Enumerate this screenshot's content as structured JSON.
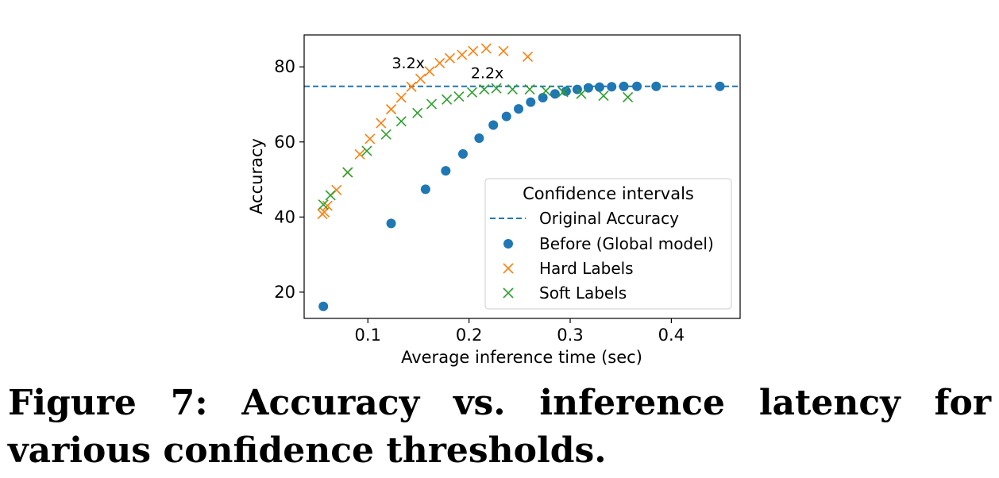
{
  "caption": "Figure 7: Accuracy vs. inference latency for various confidence thresholds.",
  "colors": {
    "blue": "#1f77b4",
    "orange": "#ff7f0e",
    "green": "#2ca02c"
  },
  "chart_data": {
    "type": "scatter",
    "xlabel": "Average inference time (sec)",
    "ylabel": "Accuracy",
    "xlim": [
      0.037,
      0.468
    ],
    "ylim": [
      13.0,
      88.5
    ],
    "xticks": [
      0.1,
      0.2,
      0.3,
      0.4
    ],
    "xtick_labels": [
      "0.1",
      "0.2",
      "0.3",
      "0.4"
    ],
    "yticks": [
      20,
      40,
      60,
      80
    ],
    "ytick_labels": [
      "20",
      "40",
      "60",
      "80"
    ],
    "grid": false,
    "legend": {
      "title": "Confidence intervals",
      "placement": "lower-right"
    },
    "hline": {
      "name": "Original Accuracy",
      "y": 74.8,
      "style": "dashed",
      "color": "#1f77b4"
    },
    "series": [
      {
        "name": "Before (Global model)",
        "marker": "circle",
        "color": "#1f77b4",
        "points": [
          [
            0.056,
            16.2
          ],
          [
            0.123,
            38.3
          ],
          [
            0.157,
            47.4
          ],
          [
            0.177,
            52.3
          ],
          [
            0.194,
            56.8
          ],
          [
            0.21,
            61.0
          ],
          [
            0.224,
            64.5
          ],
          [
            0.237,
            66.8
          ],
          [
            0.249,
            68.8
          ],
          [
            0.261,
            70.6
          ],
          [
            0.273,
            71.8
          ],
          [
            0.285,
            72.8
          ],
          [
            0.296,
            73.5
          ],
          [
            0.307,
            74.0
          ],
          [
            0.318,
            74.4
          ],
          [
            0.329,
            74.6
          ],
          [
            0.341,
            74.7
          ],
          [
            0.353,
            74.8
          ],
          [
            0.366,
            74.8
          ],
          [
            0.385,
            74.8
          ],
          [
            0.448,
            74.8
          ]
        ]
      },
      {
        "name": "Hard Labels",
        "marker": "x",
        "color": "#ff7f0e",
        "points": [
          [
            0.055,
            40.8
          ],
          [
            0.057,
            41.3
          ],
          [
            0.06,
            43.0
          ],
          [
            0.069,
            47.2
          ],
          [
            0.08,
            51.9
          ],
          [
            0.092,
            56.7
          ],
          [
            0.102,
            60.8
          ],
          [
            0.113,
            65.0
          ],
          [
            0.123,
            68.7
          ],
          [
            0.133,
            71.8
          ],
          [
            0.143,
            74.7
          ],
          [
            0.152,
            76.8
          ],
          [
            0.161,
            78.8
          ],
          [
            0.171,
            81.0
          ],
          [
            0.181,
            82.3
          ],
          [
            0.193,
            83.2
          ],
          [
            0.204,
            84.2
          ],
          [
            0.217,
            84.9
          ],
          [
            0.234,
            84.2
          ],
          [
            0.258,
            82.7
          ]
        ]
      },
      {
        "name": "Soft Labels",
        "marker": "x",
        "color": "#2ca02c",
        "points": [
          [
            0.056,
            43.3
          ],
          [
            0.063,
            45.8
          ],
          [
            0.08,
            51.9
          ],
          [
            0.099,
            57.6
          ],
          [
            0.118,
            62.0
          ],
          [
            0.133,
            65.5
          ],
          [
            0.149,
            67.7
          ],
          [
            0.163,
            70.1
          ],
          [
            0.178,
            71.3
          ],
          [
            0.19,
            72.1
          ],
          [
            0.203,
            73.2
          ],
          [
            0.215,
            74.0
          ],
          [
            0.227,
            74.3
          ],
          [
            0.243,
            74.0
          ],
          [
            0.26,
            74.0
          ],
          [
            0.276,
            73.6
          ],
          [
            0.293,
            73.3
          ],
          [
            0.311,
            72.8
          ],
          [
            0.333,
            72.3
          ],
          [
            0.357,
            71.9
          ]
        ]
      }
    ],
    "annotations": [
      {
        "text": "3.2x",
        "x": 0.14,
        "y": 79.6,
        "color": "#ff7f0e"
      },
      {
        "text": "2.2x",
        "x": 0.218,
        "y": 77.0,
        "color": "#008000"
      }
    ]
  }
}
